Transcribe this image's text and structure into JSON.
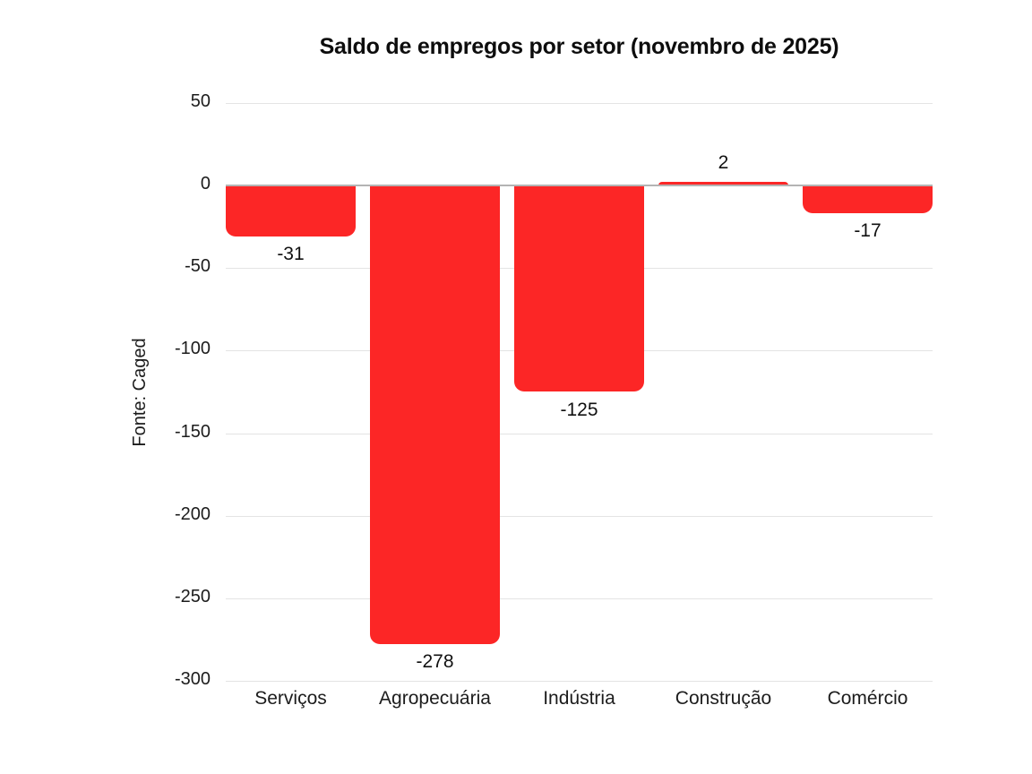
{
  "page": {
    "background_color": "#ffffff"
  },
  "chart_data": {
    "type": "bar",
    "title": "Saldo de empregos por setor (novembro de 2025)",
    "ylabel": "Fonte: Caged",
    "xlabel": "",
    "categories": [
      "Serviços",
      "Agropecuária",
      "Indústria",
      "Construção",
      "Comércio"
    ],
    "values": [
      -31,
      -278,
      -125,
      2,
      -17
    ],
    "value_labels": [
      "-31",
      "-278",
      "-125",
      "2",
      "-17"
    ],
    "bar_color": "#fc2626",
    "ylim": [
      -300,
      50
    ],
    "yticks": [
      50,
      0,
      -50,
      -100,
      -150,
      -200,
      -250,
      -300
    ],
    "grid": "horizontal",
    "gridline_color": "#e4e4e4",
    "zero_line_color": "#b4b4b4",
    "legend": "none"
  }
}
